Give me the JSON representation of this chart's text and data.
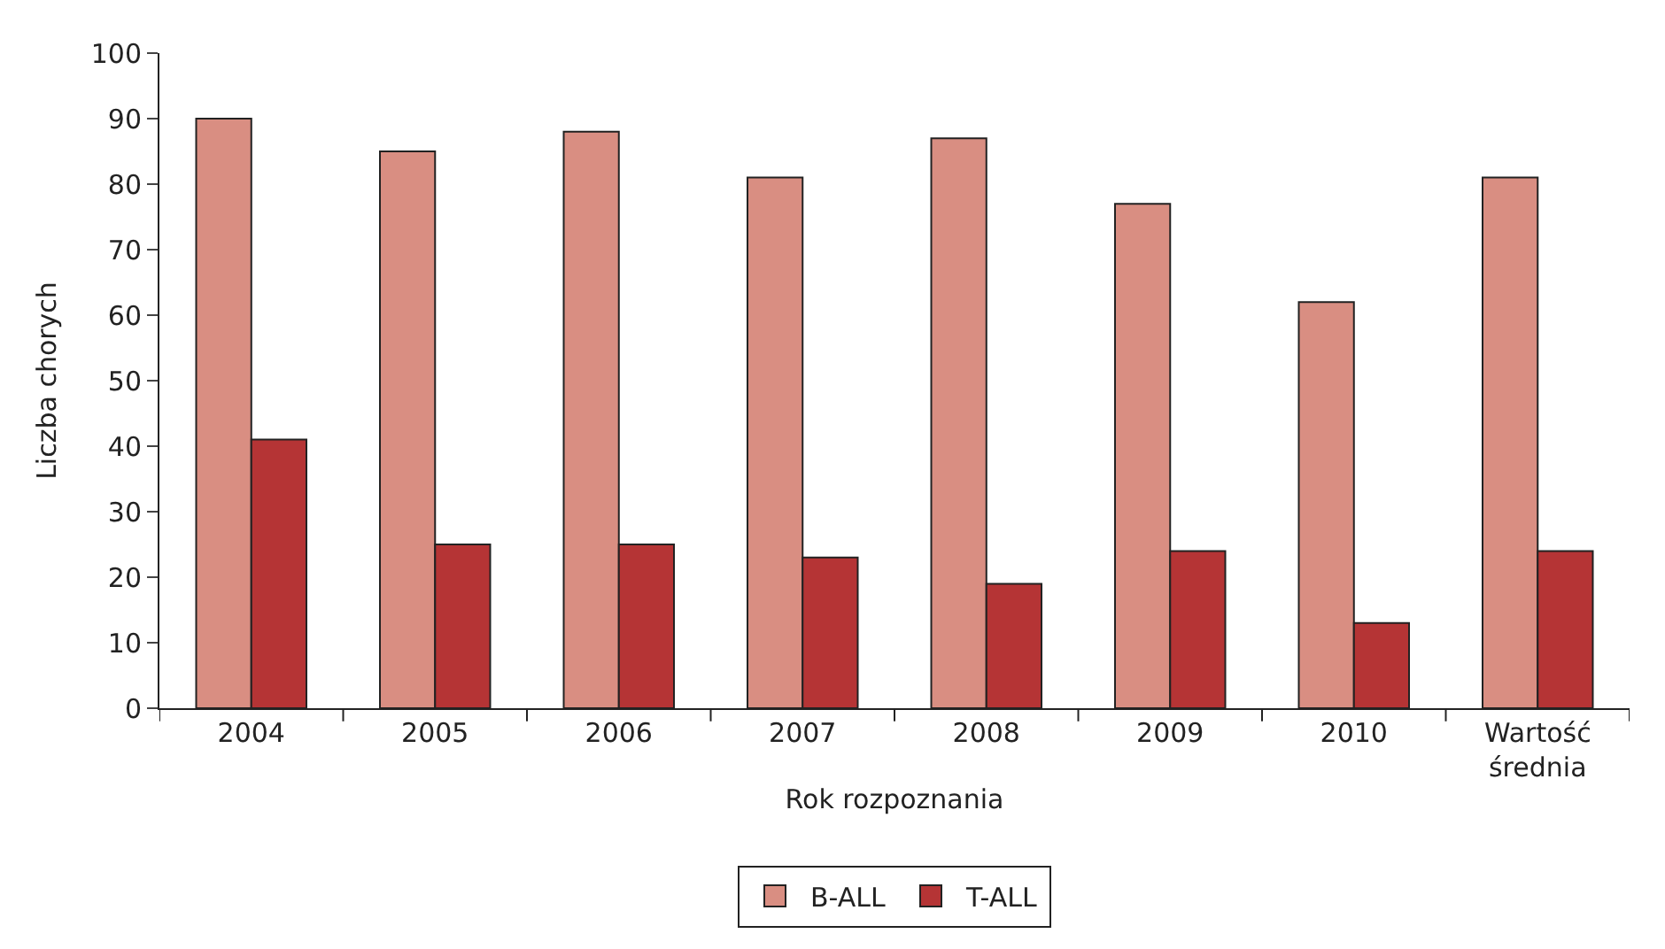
{
  "chart_data": {
    "type": "bar",
    "xlabel": "Rok rozpoznania",
    "ylabel": "Liczba chorych",
    "categories": [
      "2004",
      "2005",
      "2006",
      "2007",
      "2008",
      "2009",
      "2010",
      "Wartość\nśrednia"
    ],
    "series": [
      {
        "name": "B-ALL",
        "color": "#d98e82",
        "values": [
          90,
          85,
          88,
          81,
          87,
          77,
          62,
          81
        ]
      },
      {
        "name": "T-ALL",
        "color": "#b53435",
        "values": [
          41,
          25,
          25,
          23,
          19,
          24,
          13,
          24
        ]
      }
    ],
    "ylim": [
      0,
      100
    ],
    "yticks": [
      0,
      10,
      20,
      30,
      40,
      50,
      60,
      70,
      80,
      90,
      100
    ],
    "legend": "bottom"
  }
}
